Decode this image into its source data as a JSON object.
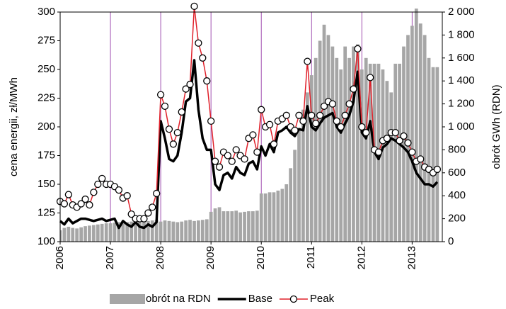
{
  "chart_data": {
    "type": "combo",
    "y_label": "cena energii, zł/MWh",
    "y2_label": "obrót GWh (RDN)",
    "xlim": [
      2006,
      2013.6
    ],
    "xticks": [
      2006,
      2007,
      2008,
      2009,
      2010,
      2011,
      2012,
      2013
    ],
    "ylim": [
      100,
      300
    ],
    "yticks": [
      100,
      125,
      150,
      175,
      200,
      225,
      250,
      275,
      300
    ],
    "y2lim": [
      0,
      2000
    ],
    "y2ticks": [
      0,
      200,
      400,
      600,
      800,
      {
        "value": 1000,
        "label": "1 000"
      },
      {
        "value": 1200,
        "label": "1 200"
      },
      {
        "value": 1400,
        "label": "1 400"
      },
      {
        "value": 1600,
        "label": "1 600"
      },
      {
        "value": 1800,
        "label": "1 800"
      },
      {
        "value": 2000,
        "label": "2 000"
      }
    ],
    "grid": "x",
    "grid_color": "#a050b0",
    "legend": "bottom",
    "x": [
      2006,
      2006.083,
      2006.167,
      2006.25,
      2006.333,
      2006.417,
      2006.5,
      2006.583,
      2006.667,
      2006.75,
      2006.833,
      2006.917,
      2007,
      2007.083,
      2007.167,
      2007.25,
      2007.333,
      2007.417,
      2007.5,
      2007.583,
      2007.667,
      2007.75,
      2007.833,
      2007.917,
      2008,
      2008.083,
      2008.167,
      2008.25,
      2008.333,
      2008.417,
      2008.5,
      2008.583,
      2008.667,
      2008.75,
      2008.833,
      2008.917,
      2009,
      2009.083,
      2009.167,
      2009.25,
      2009.333,
      2009.417,
      2009.5,
      2009.583,
      2009.667,
      2009.75,
      2009.833,
      2009.917,
      2010,
      2010.083,
      2010.167,
      2010.25,
      2010.333,
      2010.417,
      2010.5,
      2010.583,
      2010.667,
      2010.75,
      2010.833,
      2010.917,
      2011,
      2011.083,
      2011.167,
      2011.25,
      2011.333,
      2011.417,
      2011.5,
      2011.583,
      2011.667,
      2011.75,
      2011.833,
      2011.917,
      2012,
      2012.083,
      2012.167,
      2012.25,
      2012.333,
      2012.417,
      2012.5,
      2012.583,
      2012.667,
      2012.75,
      2012.833,
      2012.917,
      2013,
      2013.083,
      2013.167,
      2013.25,
      2013.333,
      2013.417,
      2013.5
    ],
    "series": [
      {
        "name": "obrót na RDN",
        "type": "bar",
        "axis": "y2",
        "color": "#a6a6a6",
        "values": [
          100,
          120,
          130,
          120,
          115,
          125,
          135,
          140,
          145,
          150,
          155,
          160,
          160,
          165,
          170,
          165,
          170,
          175,
          180,
          170,
          175,
          180,
          185,
          190,
          175,
          185,
          180,
          175,
          170,
          175,
          185,
          190,
          180,
          185,
          190,
          195,
          260,
          290,
          300,
          265,
          265,
          265,
          270,
          255,
          260,
          265,
          265,
          270,
          420,
          420,
          430,
          430,
          445,
          460,
          500,
          640,
          800,
          990,
          1150,
          1300,
          1450,
          1600,
          1750,
          1890,
          1800,
          1700,
          1600,
          1500,
          1700,
          1600,
          1700,
          1720,
          1500,
          1600,
          1550,
          1550,
          1550,
          1500,
          1400,
          1300,
          1550,
          1550,
          1700,
          1800,
          1880,
          2030,
          1900,
          1800,
          1600,
          1520,
          1520
        ]
      },
      {
        "name": "Base",
        "type": "line",
        "color": "#000000",
        "values": [
          118,
          115,
          120,
          116,
          118,
          120,
          120,
          119,
          118,
          119,
          120,
          118,
          119,
          120,
          112,
          118,
          115,
          113,
          117,
          113,
          112,
          115,
          113,
          117,
          205,
          190,
          172,
          170,
          175,
          195,
          222,
          225,
          258,
          215,
          190,
          180,
          180,
          150,
          145,
          158,
          160,
          155,
          165,
          160,
          158,
          168,
          170,
          163,
          183,
          175,
          185,
          178,
          195,
          197,
          200,
          195,
          192,
          198,
          197,
          218,
          200,
          197,
          203,
          208,
          210,
          212,
          200,
          195,
          203,
          210,
          222,
          248,
          195,
          190,
          205,
          178,
          172,
          182,
          185,
          190,
          188,
          185,
          182,
          178,
          170,
          160,
          155,
          150,
          150,
          148,
          152
        ]
      },
      {
        "name": "Peak",
        "type": "line",
        "color": "#e0202a",
        "marker": "circle",
        "values": [
          135,
          133,
          141,
          132,
          130,
          133,
          137,
          132,
          143,
          150,
          155,
          150,
          150,
          148,
          145,
          138,
          140,
          124,
          120,
          120,
          120,
          125,
          130,
          142,
          228,
          218,
          198,
          185,
          195,
          213,
          233,
          237,
          305,
          273,
          260,
          240,
          205,
          170,
          165,
          178,
          175,
          170,
          180,
          175,
          172,
          190,
          193,
          178,
          215,
          200,
          202,
          185,
          205,
          207,
          210,
          200,
          197,
          210,
          205,
          257,
          210,
          203,
          210,
          218,
          222,
          220,
          205,
          200,
          210,
          220,
          233,
          268,
          200,
          195,
          243,
          180,
          178,
          188,
          190,
          195,
          195,
          188,
          192,
          186,
          178,
          170,
          172,
          165,
          163,
          160,
          163
        ]
      }
    ]
  }
}
